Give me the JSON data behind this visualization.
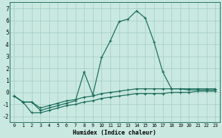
{
  "xlabel": "Humidex (Indice chaleur)",
  "x": [
    0,
    1,
    2,
    3,
    4,
    5,
    6,
    7,
    8,
    9,
    10,
    11,
    12,
    13,
    14,
    15,
    16,
    17,
    18,
    19,
    20,
    21,
    22,
    23
  ],
  "line1": [
    -0.3,
    -0.8,
    -0.8,
    -1.5,
    -1.3,
    -1.1,
    -0.9,
    -0.7,
    1.7,
    -0.2,
    2.9,
    4.3,
    5.9,
    6.1,
    6.8,
    6.2,
    4.2,
    1.7,
    0.3,
    0.3,
    0.2,
    0.2,
    0.2,
    0.2
  ],
  "line2": [
    -0.3,
    -0.8,
    -0.8,
    -1.3,
    -1.1,
    -0.9,
    -0.7,
    -0.6,
    -0.4,
    -0.3,
    -0.1,
    0.0,
    0.1,
    0.2,
    0.3,
    0.3,
    0.3,
    0.3,
    0.3,
    0.3,
    0.3,
    0.3,
    0.3,
    0.3
  ],
  "line3": [
    -0.3,
    -0.8,
    -1.7,
    -1.7,
    -1.5,
    -1.3,
    -1.1,
    -1.0,
    -0.8,
    -0.7,
    -0.5,
    -0.4,
    -0.3,
    -0.2,
    -0.1,
    -0.1,
    -0.1,
    -0.1,
    0.0,
    0.0,
    0.0,
    0.1,
    0.1,
    0.1
  ],
  "line_color": "#1a6b5a",
  "bg_color": "#c8e8e0",
  "grid_color": "#a8cfc8",
  "ylim": [
    -2.5,
    7.5
  ],
  "yticks": [
    -2,
    -1,
    0,
    1,
    2,
    3,
    4,
    5,
    6,
    7
  ],
  "xticks": [
    0,
    1,
    2,
    3,
    4,
    5,
    6,
    7,
    8,
    9,
    10,
    11,
    12,
    13,
    14,
    15,
    16,
    17,
    18,
    19,
    20,
    21,
    22,
    23
  ],
  "markersize": 3,
  "linewidth": 0.9
}
